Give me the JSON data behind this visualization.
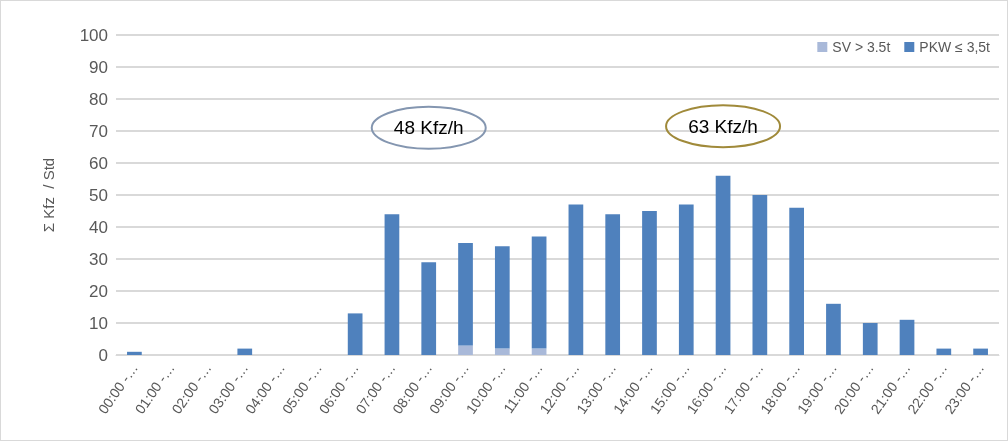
{
  "chart_data": {
    "type": "bar",
    "stacked": true,
    "ylabel": "Σ Kfz  / Std",
    "categories": [
      "00:00 -…",
      "01:00 -…",
      "02:00 -…",
      "03:00 -…",
      "04:00 -…",
      "05:00 -…",
      "06:00 -…",
      "07:00 -…",
      "08:00 -…",
      "09:00 -…",
      "10:00 -…",
      "11:00 -…",
      "12:00 -…",
      "13:00 -…",
      "14:00 -…",
      "15:00 -…",
      "16:00 -…",
      "17:00 -…",
      "18:00 -…",
      "19:00 -…",
      "20:00 -…",
      "21:00 -…",
      "22:00 -…",
      "23:00 -…"
    ],
    "series": [
      {
        "name": "SV > 3.5t",
        "color": "#a9b9d9",
        "values": [
          0,
          0,
          0,
          0,
          0,
          0,
          0,
          0,
          0,
          3,
          2,
          2,
          0,
          0,
          0,
          0,
          0,
          0,
          0,
          0,
          0,
          0,
          0,
          0
        ]
      },
      {
        "name": "PKW ≤ 3,5t",
        "color": "#4f81bd",
        "values": [
          1,
          0,
          0,
          2,
          0,
          0,
          13,
          44,
          29,
          32,
          32,
          35,
          47,
          44,
          45,
          47,
          56,
          50,
          46,
          16,
          10,
          11,
          2,
          2
        ]
      }
    ],
    "ylim": [
      0,
      100
    ],
    "yticks": [
      0,
      10,
      20,
      30,
      40,
      50,
      60,
      70,
      80,
      90,
      100
    ],
    "grid": "y",
    "legend": "top right",
    "annotations": [
      "48 Kfz/h",
      "63 Kfz/h"
    ]
  }
}
